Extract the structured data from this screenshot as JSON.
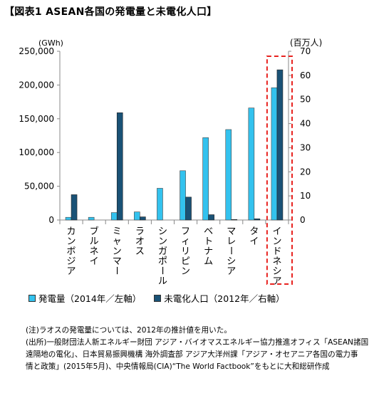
{
  "title": "【図表1 ASEAN各国の発電量と未電化人口】",
  "chart_data": {
    "type": "bar",
    "categories": [
      "カンボジア",
      "ブルネイ",
      "ミャンマー",
      "ラオス",
      "シンガポール",
      "フィリピン",
      "ベトナム",
      "マレーシア",
      "タイ",
      "インドネシア"
    ],
    "series": [
      {
        "name": "発電量（2014年／左軸）",
        "axis": "left",
        "color": "#33c2ee",
        "values": [
          4000,
          4000,
          11000,
          12000,
          47000,
          73000,
          122000,
          134000,
          166000,
          196000
        ]
      },
      {
        "name": "未電化人口（2012年／右軸）",
        "axis": "right",
        "color": "#1a5276",
        "values": [
          10.5,
          0,
          44.5,
          1.3,
          0,
          9.5,
          2.2,
          0.2,
          0.5,
          62.3
        ]
      }
    ],
    "y_left": {
      "unit": "(GWh)",
      "ylim": [
        0,
        250000
      ],
      "ticks": [
        "0",
        "50,000",
        "100,000",
        "150,000",
        "200,000",
        "250,000"
      ]
    },
    "y_right": {
      "unit": "(百万人)",
      "ylim": [
        0,
        70
      ],
      "ticks": [
        "0",
        "10",
        "20",
        "30",
        "40",
        "50",
        "60",
        "70"
      ]
    },
    "highlight": "インドネシア",
    "highlight_color": "#e8221f",
    "grid": false,
    "legend_placement": "bottom"
  },
  "notes": [
    "(注)ラオスの発電量については、2012年の推計値を用いた。",
    "(出所)一般財団法人新エネルギー財団 アジア・バイオマスエネルギー協力推進オフィス「ASEAN諸国の",
    "遠隔地の電化」、日本貿易振興機構 海外調査部 アジア大洋州課「アジア・オセアニア各国の電力事",
    "情と政策」(2015年5月)、中央情報局(CIA)“The World Factbook”をもとに大和総研作成"
  ]
}
